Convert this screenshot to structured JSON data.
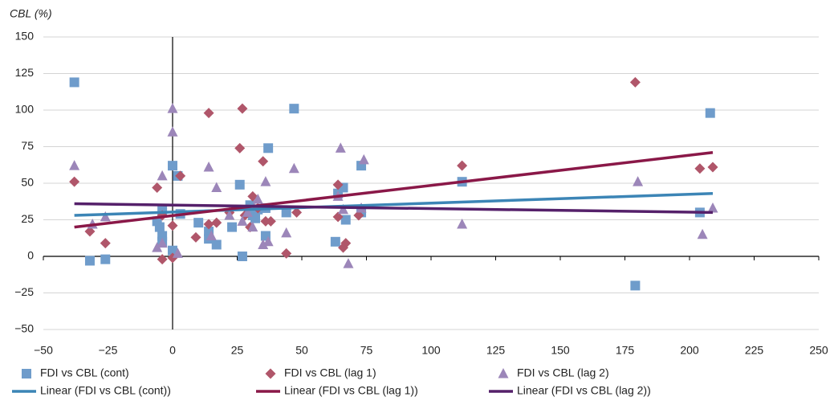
{
  "chart_data": {
    "type": "scatter",
    "y_label": "CBL (%)",
    "xlim": [
      -50,
      250
    ],
    "ylim": [
      -50,
      150
    ],
    "xticks": [
      {
        "value": -50,
        "label": "−50"
      },
      {
        "value": -25,
        "label": "−25"
      },
      0,
      25,
      50,
      75,
      100,
      125,
      150,
      175,
      200,
      225,
      250
    ],
    "yticks": [
      {
        "value": -50,
        "label": "−50"
      },
      {
        "value": -25,
        "label": "−25"
      },
      0,
      25,
      50,
      75,
      100,
      125,
      150
    ],
    "grid": true,
    "legend": "bottom",
    "series": [
      {
        "name": "FDI vs CBL (cont)",
        "marker": "square",
        "color": "#6f9ccb",
        "x": [
          -38,
          -32,
          -26,
          -6,
          -4,
          -5,
          -4,
          -4,
          0,
          0,
          2,
          3,
          10,
          14,
          14,
          17,
          23,
          26,
          27,
          30,
          31,
          32,
          33,
          36,
          37,
          36,
          44,
          47,
          63,
          64,
          66,
          67,
          73,
          73,
          112,
          179,
          204,
          208
        ],
        "values": [
          119,
          -3,
          -2,
          24,
          31,
          20,
          14,
          10,
          62,
          4,
          55,
          29,
          23,
          17,
          12,
          8,
          20,
          49,
          0,
          35,
          28,
          26,
          32,
          14,
          74,
          33,
          30,
          101,
          10,
          43,
          47,
          25,
          30,
          62,
          51,
          -20,
          30,
          98
        ]
      },
      {
        "name": "FDI vs CBL (lag 1)",
        "marker": "diamond",
        "color": "#b0566a",
        "x": [
          -38,
          -32,
          -26,
          -6,
          -4,
          -4,
          0,
          0,
          3,
          9,
          14,
          14,
          17,
          22,
          26,
          27,
          28,
          30,
          31,
          33,
          35,
          36,
          38,
          44,
          48,
          64,
          64,
          66,
          67,
          72,
          112,
          179,
          204,
          209
        ],
        "values": [
          51,
          17,
          9,
          47,
          28,
          -2,
          21,
          -1,
          55,
          13,
          98,
          22,
          23,
          30,
          74,
          101,
          28,
          20,
          41,
          33,
          65,
          24,
          24,
          2,
          30,
          27,
          49,
          6,
          9,
          28,
          62,
          119,
          60,
          61
        ]
      },
      {
        "name": "FDI vs CBL (lag 2)",
        "marker": "triangle",
        "color": "#9c86b9",
        "x": [
          -38,
          -31,
          -26,
          -6,
          -4,
          -4,
          0,
          0,
          2,
          14,
          15,
          17,
          22,
          27,
          29,
          31,
          33,
          35,
          36,
          37,
          44,
          47,
          64,
          65,
          66,
          68,
          74,
          73,
          112,
          180,
          205,
          209
        ],
        "values": [
          62,
          22,
          27,
          6,
          55,
          9,
          101,
          85,
          2,
          61,
          14,
          47,
          28,
          24,
          30,
          20,
          39,
          8,
          51,
          10,
          16,
          60,
          41,
          74,
          32,
          -5,
          66,
          33,
          22,
          51,
          15,
          33
        ]
      },
      {
        "name": "Linear (FDI vs CBL (cont))",
        "marker": "line",
        "color": "#3c85b6",
        "x": [
          -38,
          209
        ],
        "values": [
          28,
          43
        ]
      },
      {
        "name": "Linear (FDI vs CBL (lag 1))",
        "marker": "line",
        "color": "#8a1848",
        "x": [
          -38,
          209
        ],
        "values": [
          20,
          71
        ]
      },
      {
        "name": "Linear (FDI vs CBL (lag 2))",
        "marker": "line",
        "color": "#55206a",
        "x": [
          -38,
          209
        ],
        "values": [
          36,
          30
        ]
      }
    ]
  }
}
